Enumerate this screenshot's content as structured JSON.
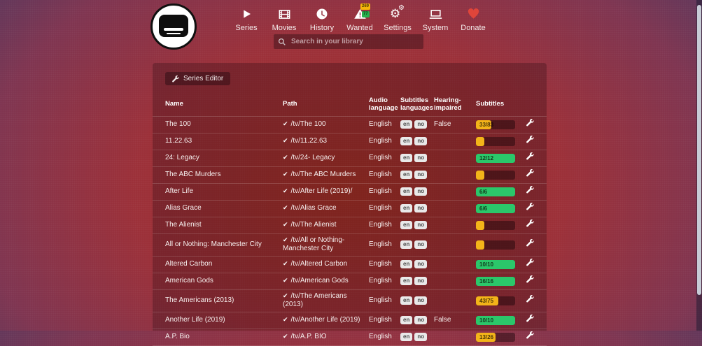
{
  "nav": {
    "search_placeholder": "Search in your library",
    "items": [
      {
        "id": "series",
        "label": "Series"
      },
      {
        "id": "movies",
        "label": "Movies"
      },
      {
        "id": "history",
        "label": "History"
      },
      {
        "id": "wanted",
        "label": "Wanted",
        "badges": [
          {
            "value": "269",
            "color": "#f5b50a"
          },
          {
            "value": "77",
            "color": "#26b14c"
          }
        ]
      },
      {
        "id": "settings",
        "label": "Settings"
      },
      {
        "id": "system",
        "label": "System"
      },
      {
        "id": "donate",
        "label": "Donate"
      }
    ]
  },
  "toolbar": {
    "series_editor_label": "Series Editor"
  },
  "table": {
    "headers": {
      "name": "Name",
      "path": "Path",
      "audio_language": "Audio language",
      "subtitles_languages": "Subtitles languages",
      "hearing_impaired": "Hearing-impaired",
      "subtitles": "Subtitles"
    },
    "rows": [
      {
        "name": "The 100",
        "path": "/tv/The 100",
        "audio_language": "English",
        "subtitles_languages": [
          "en",
          "no"
        ],
        "hearing_impaired": "False",
        "subtitles": {
          "label": "33/83",
          "percent": 40,
          "state": "warning"
        }
      },
      {
        "name": "11.22.63",
        "path": "/tv/11.22.63",
        "audio_language": "English",
        "subtitles_languages": [
          "en",
          "no"
        ],
        "hearing_impaired": "",
        "subtitles": {
          "label": "",
          "percent": 21,
          "state": "warning"
        }
      },
      {
        "name": "24: Legacy",
        "path": "/tv/24- Legacy",
        "audio_language": "English",
        "subtitles_languages": [
          "en",
          "no"
        ],
        "hearing_impaired": "",
        "subtitles": {
          "label": "12/12",
          "percent": 100,
          "state": "success"
        }
      },
      {
        "name": "The ABC Murders",
        "path": "/tv/The ABC Murders",
        "audio_language": "English",
        "subtitles_languages": [
          "en",
          "no"
        ],
        "hearing_impaired": "",
        "subtitles": {
          "label": "",
          "percent": 21,
          "state": "warning"
        }
      },
      {
        "name": "After Life",
        "path": "/tv/After Life (2019)/",
        "audio_language": "English",
        "subtitles_languages": [
          "en",
          "no"
        ],
        "hearing_impaired": "",
        "subtitles": {
          "label": "6/6",
          "percent": 100,
          "state": "success"
        }
      },
      {
        "name": "Alias Grace",
        "path": "/tv/Alias Grace",
        "audio_language": "English",
        "subtitles_languages": [
          "en",
          "no"
        ],
        "hearing_impaired": "",
        "subtitles": {
          "label": "6/6",
          "percent": 100,
          "state": "success"
        }
      },
      {
        "name": "The Alienist",
        "path": "/tv/The Alienist",
        "audio_language": "English",
        "subtitles_languages": [
          "en",
          "no"
        ],
        "hearing_impaired": "",
        "subtitles": {
          "label": "",
          "percent": 21,
          "state": "warning"
        }
      },
      {
        "name": "All or Nothing: Manchester City",
        "path": "/tv/All or Nothing- Manchester City",
        "audio_language": "English",
        "subtitles_languages": [
          "en",
          "no"
        ],
        "hearing_impaired": "",
        "subtitles": {
          "label": "",
          "percent": 21,
          "state": "warning"
        }
      },
      {
        "name": "Altered Carbon",
        "path": "/tv/Altered Carbon",
        "audio_language": "English",
        "subtitles_languages": [
          "en",
          "no"
        ],
        "hearing_impaired": "",
        "subtitles": {
          "label": "10/10",
          "percent": 100,
          "state": "success"
        }
      },
      {
        "name": "American Gods",
        "path": "/tv/American Gods",
        "audio_language": "English",
        "subtitles_languages": [
          "en",
          "no"
        ],
        "hearing_impaired": "",
        "subtitles": {
          "label": "16/16",
          "percent": 100,
          "state": "success"
        }
      },
      {
        "name": "The Americans (2013)",
        "path": "/tv/The Americans (2013)",
        "audio_language": "English",
        "subtitles_languages": [
          "en",
          "no"
        ],
        "hearing_impaired": "",
        "subtitles": {
          "label": "43/75",
          "percent": 57,
          "state": "warning"
        }
      },
      {
        "name": "Another Life (2019)",
        "path": "/tv/Another Life (2019)",
        "audio_language": "English",
        "subtitles_languages": [
          "en",
          "no"
        ],
        "hearing_impaired": "False",
        "subtitles": {
          "label": "10/10",
          "percent": 100,
          "state": "success"
        }
      },
      {
        "name": "A.P. Bio",
        "path": "/tv/A.P. BIO",
        "audio_language": "English",
        "subtitles_languages": [
          "en",
          "no"
        ],
        "hearing_impaired": "",
        "subtitles": {
          "label": "13/26",
          "percent": 50,
          "state": "warning"
        }
      }
    ]
  },
  "colors": {
    "progress_warning": "#f3b419",
    "progress_success": "#2bc76a",
    "wanted_badge_yellow": "#f5b50a",
    "wanted_badge_green": "#26b14c",
    "heart": "#e0453a",
    "lang_badge_bg": "#e9e9e9",
    "background_center": "#a52e22",
    "background_edge": "#2c3a5e"
  }
}
